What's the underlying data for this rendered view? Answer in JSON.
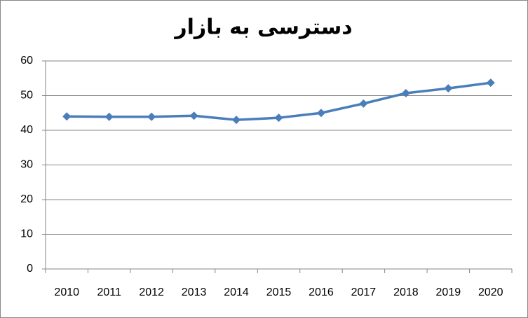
{
  "chart_data": {
    "type": "line",
    "title": "دسترسی به بازار",
    "categories": [
      "2010",
      "2011",
      "2012",
      "2013",
      "2014",
      "2015",
      "2016",
      "2017",
      "2018",
      "2019",
      "2020"
    ],
    "series": [
      {
        "name": "دسترسی به بازار",
        "color": "#4a7ebb",
        "values": [
          44.0,
          43.9,
          43.9,
          44.2,
          43.0,
          43.6,
          45.0,
          47.7,
          50.7,
          52.1,
          53.7
        ]
      }
    ],
    "ylim": [
      0,
      60
    ],
    "yticks": [
      0,
      10,
      20,
      30,
      40,
      50,
      60
    ],
    "grid": true
  }
}
